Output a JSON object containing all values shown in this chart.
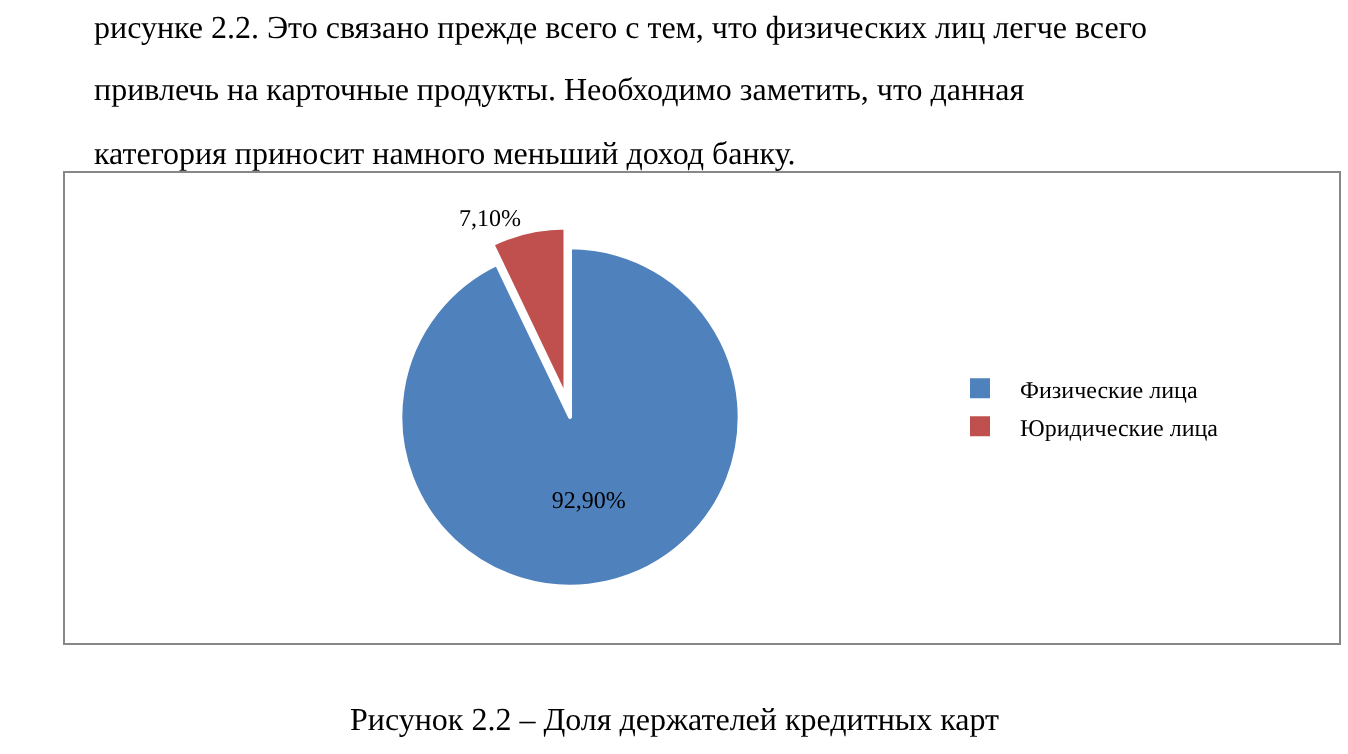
{
  "chart_data": {
    "type": "pie",
    "categories": [
      "Физические лица",
      "Юридические лица"
    ],
    "values": [
      92.9,
      7.1
    ],
    "value_labels": [
      "92,90%",
      "7,10%"
    ],
    "colors": [
      "#4f81bd",
      "#c0504d"
    ],
    "legend": "right",
    "annotations": [
      "рисунке 2.2. Это связано прежде всего с тем, что физических лиц легче всего",
      "привлечь на карточные продукты. Необходимо заметить, что данная",
      "категория приносит намного меньший доход банку.",
      "Рисунок 2.2 – Доля держателей кредитных карт"
    ]
  }
}
